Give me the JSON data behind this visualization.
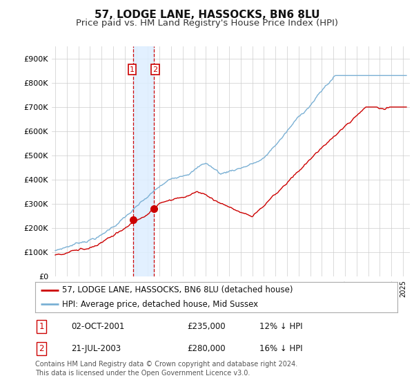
{
  "title": "57, LODGE LANE, HASSOCKS, BN6 8LU",
  "subtitle": "Price paid vs. HM Land Registry's House Price Index (HPI)",
  "ylabel_ticks": [
    "£0",
    "£100K",
    "£200K",
    "£300K",
    "£400K",
    "£500K",
    "£600K",
    "£700K",
    "£800K",
    "£900K"
  ],
  "ytick_values": [
    0,
    100000,
    200000,
    300000,
    400000,
    500000,
    600000,
    700000,
    800000,
    900000
  ],
  "ylim": [
    0,
    950000
  ],
  "xlim_start": 1994.7,
  "xlim_end": 2025.6,
  "transaction1": {
    "date_num": 2001.75,
    "price": 235000,
    "label": "1",
    "date_str": "02-OCT-2001",
    "pct": "12% ↓ HPI"
  },
  "transaction2": {
    "date_num": 2003.54,
    "price": 280000,
    "label": "2",
    "date_str": "21-JUL-2003",
    "pct": "16% ↓ HPI"
  },
  "legend_red_label": "57, LODGE LANE, HASSOCKS, BN6 8LU (detached house)",
  "legend_blue_label": "HPI: Average price, detached house, Mid Sussex",
  "footnote": "Contains HM Land Registry data © Crown copyright and database right 2024.\nThis data is licensed under the Open Government Licence v3.0.",
  "red_color": "#cc0000",
  "blue_color": "#7ab0d4",
  "shade_color": "#ddeeff",
  "vline_color": "#cc0000",
  "grid_color": "#cccccc",
  "background_color": "#ffffff",
  "title_fontsize": 11,
  "subtitle_fontsize": 9.5,
  "tick_fontsize": 8,
  "legend_fontsize": 8.5,
  "footnote_fontsize": 7
}
